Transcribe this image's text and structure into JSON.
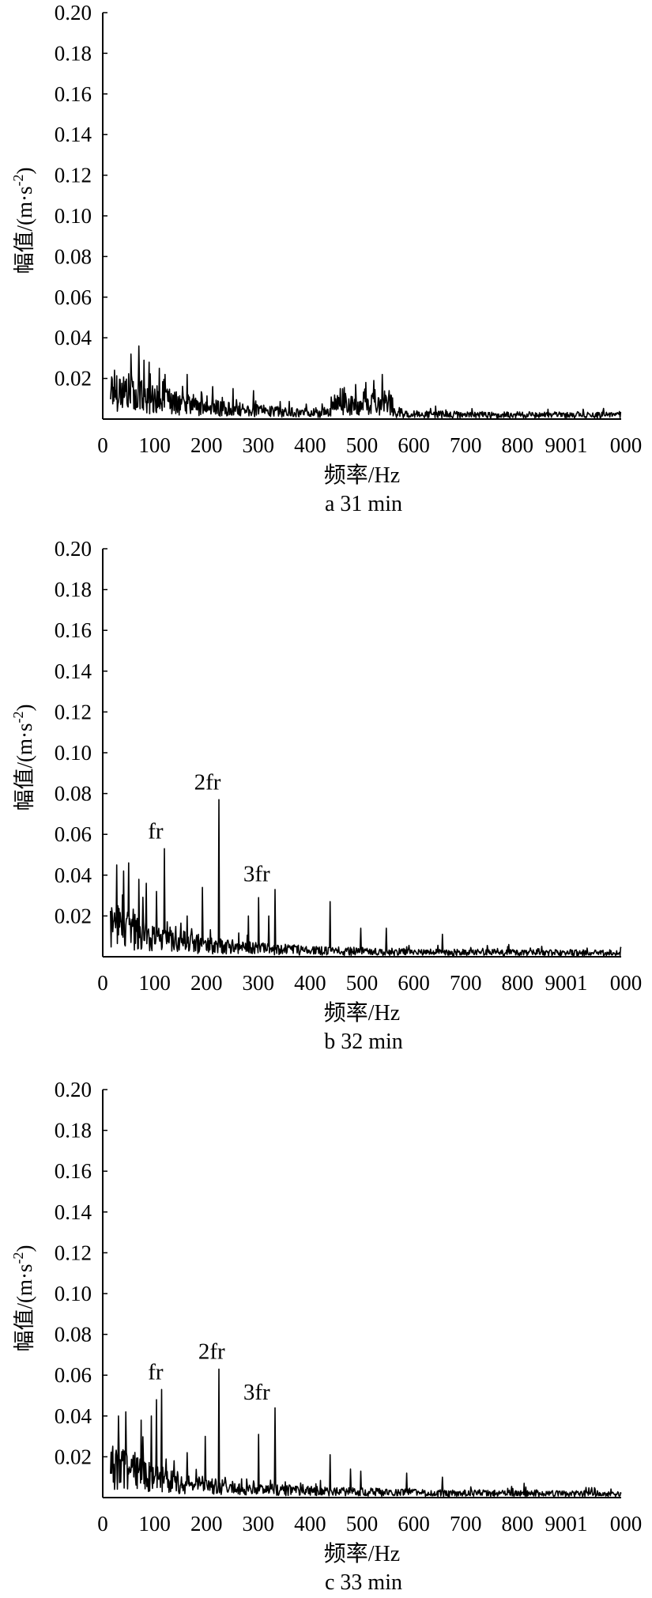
{
  "chart_data": [
    {
      "type": "line",
      "caption": "a  31 min",
      "xlabel": "频率/Hz",
      "ylabel": "幅值/(m·s",
      "ylabel_sup": "-2",
      "ylabel_close": ")",
      "xlim": [
        0,
        1000
      ],
      "ylim": [
        0,
        0.2
      ],
      "yticks": [
        "0.20",
        "0.18",
        "0.16",
        "0.14",
        "0.12",
        "0.10",
        "0.08",
        "0.06",
        "0.04",
        "0.02"
      ],
      "xticks": [
        "0",
        "100",
        "200",
        "300",
        "400",
        "500",
        "600",
        "700",
        "800",
        "9001",
        "000"
      ],
      "annotations": [],
      "peaks": [
        [
          40,
          0.032
        ],
        [
          55,
          0.036
        ],
        [
          65,
          0.029
        ],
        [
          75,
          0.028
        ],
        [
          95,
          0.025
        ],
        [
          150,
          0.022
        ],
        [
          200,
          0.016
        ],
        [
          240,
          0.015
        ],
        [
          280,
          0.014
        ],
        [
          450,
          0.015
        ],
        [
          480,
          0.017
        ],
        [
          500,
          0.018
        ],
        [
          515,
          0.019
        ],
        [
          532,
          0.022
        ],
        [
          545,
          0.014
        ]
      ]
    },
    {
      "type": "line",
      "caption": "b  32 min",
      "xlabel": "频率/Hz",
      "ylabel": "幅值/(m·s",
      "ylabel_sup": "-2",
      "ylabel_close": ")",
      "xlim": [
        0,
        1000
      ],
      "ylim": [
        0,
        0.2
      ],
      "yticks": [
        "0.20",
        "0.18",
        "0.16",
        "0.14",
        "0.12",
        "0.10",
        "0.08",
        "0.06",
        "0.04",
        "0.02"
      ],
      "xticks": [
        "0",
        "100",
        "200",
        "300",
        "400",
        "500",
        "600",
        "700",
        "800",
        "9001",
        "000"
      ],
      "annotations": [
        {
          "text": "fr",
          "x": 105,
          "y": 0.058
        },
        {
          "text": "2fr",
          "x": 205,
          "y": 0.082
        },
        {
          "text": "3fr",
          "x": 300,
          "y": 0.037
        }
      ],
      "peaks": [
        [
          12,
          0.045
        ],
        [
          25,
          0.042
        ],
        [
          35,
          0.046
        ],
        [
          55,
          0.038
        ],
        [
          70,
          0.036
        ],
        [
          90,
          0.032
        ],
        [
          105,
          0.053
        ],
        [
          150,
          0.02
        ],
        [
          180,
          0.034
        ],
        [
          212,
          0.077
        ],
        [
          270,
          0.02
        ],
        [
          290,
          0.029
        ],
        [
          310,
          0.02
        ],
        [
          322,
          0.033
        ],
        [
          430,
          0.027
        ],
        [
          490,
          0.014
        ],
        [
          540,
          0.014
        ],
        [
          650,
          0.011
        ],
        [
          780,
          0.006
        ]
      ]
    },
    {
      "type": "line",
      "caption": "c  33 min",
      "xlabel": "频率/Hz",
      "ylabel": "幅值/(m·s",
      "ylabel_sup": "-2",
      "ylabel_close": ")",
      "xlim": [
        0,
        1000
      ],
      "ylim": [
        0,
        0.2
      ],
      "yticks": [
        "0.20",
        "0.18",
        "0.16",
        "0.14",
        "0.12",
        "0.10",
        "0.08",
        "0.06",
        "0.04",
        "0.02"
      ],
      "xticks": [
        "0",
        "100",
        "200",
        "300",
        "400",
        "500",
        "600",
        "700",
        "800",
        "9001",
        "000"
      ],
      "annotations": [
        {
          "text": "fr",
          "x": 105,
          "y": 0.058
        },
        {
          "text": "2fr",
          "x": 213,
          "y": 0.068
        },
        {
          "text": "3fr",
          "x": 300,
          "y": 0.048
        }
      ],
      "peaks": [
        [
          15,
          0.04
        ],
        [
          30,
          0.042
        ],
        [
          60,
          0.038
        ],
        [
          80,
          0.04
        ],
        [
          90,
          0.048
        ],
        [
          100,
          0.053
        ],
        [
          150,
          0.022
        ],
        [
          185,
          0.03
        ],
        [
          212,
          0.063
        ],
        [
          290,
          0.031
        ],
        [
          322,
          0.044
        ],
        [
          430,
          0.021
        ],
        [
          470,
          0.014
        ],
        [
          490,
          0.013
        ],
        [
          580,
          0.012
        ],
        [
          650,
          0.01
        ],
        [
          810,
          0.007
        ]
      ]
    }
  ]
}
